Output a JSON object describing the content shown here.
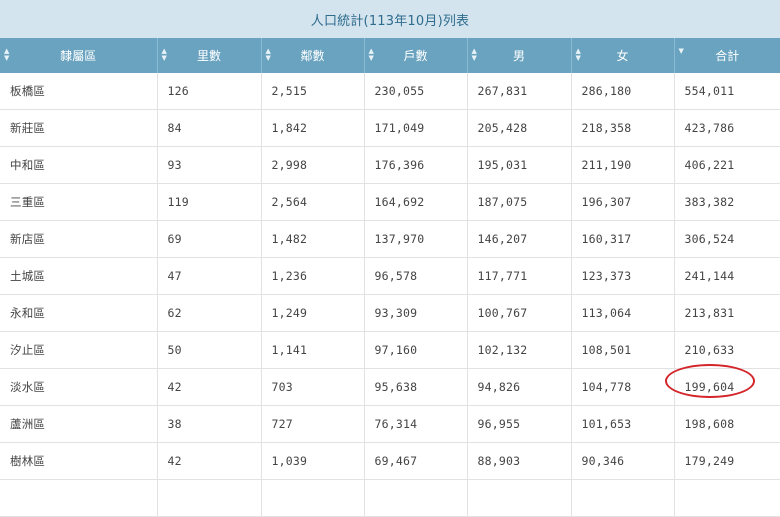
{
  "caption": "人口統計(113年10月)列表",
  "columns": [
    "隸屬區",
    "里數",
    "鄰數",
    "戶數",
    "男",
    "女",
    "合計"
  ],
  "rows": [
    [
      "板橋區",
      "126",
      "2,515",
      "230,055",
      "267,831",
      "286,180",
      "554,011"
    ],
    [
      "新莊區",
      "84",
      "1,842",
      "171,049",
      "205,428",
      "218,358",
      "423,786"
    ],
    [
      "中和區",
      "93",
      "2,998",
      "176,396",
      "195,031",
      "211,190",
      "406,221"
    ],
    [
      "三重區",
      "119",
      "2,564",
      "164,692",
      "187,075",
      "196,307",
      "383,382"
    ],
    [
      "新店區",
      "69",
      "1,482",
      "137,970",
      "146,207",
      "160,317",
      "306,524"
    ],
    [
      "土城區",
      "47",
      "1,236",
      "96,578",
      "117,771",
      "123,373",
      "241,144"
    ],
    [
      "永和區",
      "62",
      "1,249",
      "93,309",
      "100,767",
      "113,064",
      "213,831"
    ],
    [
      "汐止區",
      "50",
      "1,141",
      "97,160",
      "102,132",
      "108,501",
      "210,633"
    ],
    [
      "淡水區",
      "42",
      "703",
      "95,638",
      "94,826",
      "104,778",
      "199,604"
    ],
    [
      "蘆洲區",
      "38",
      "727",
      "76,314",
      "96,955",
      "101,653",
      "198,608"
    ],
    [
      "樹林區",
      "42",
      "1,039",
      "69,467",
      "88,903",
      "90,346",
      "179,249"
    ],
    [
      "",
      "",
      "",
      "",
      "",
      "",
      ""
    ]
  ],
  "highlight": {
    "row": 8,
    "column": 6,
    "color": "#d4252a"
  }
}
